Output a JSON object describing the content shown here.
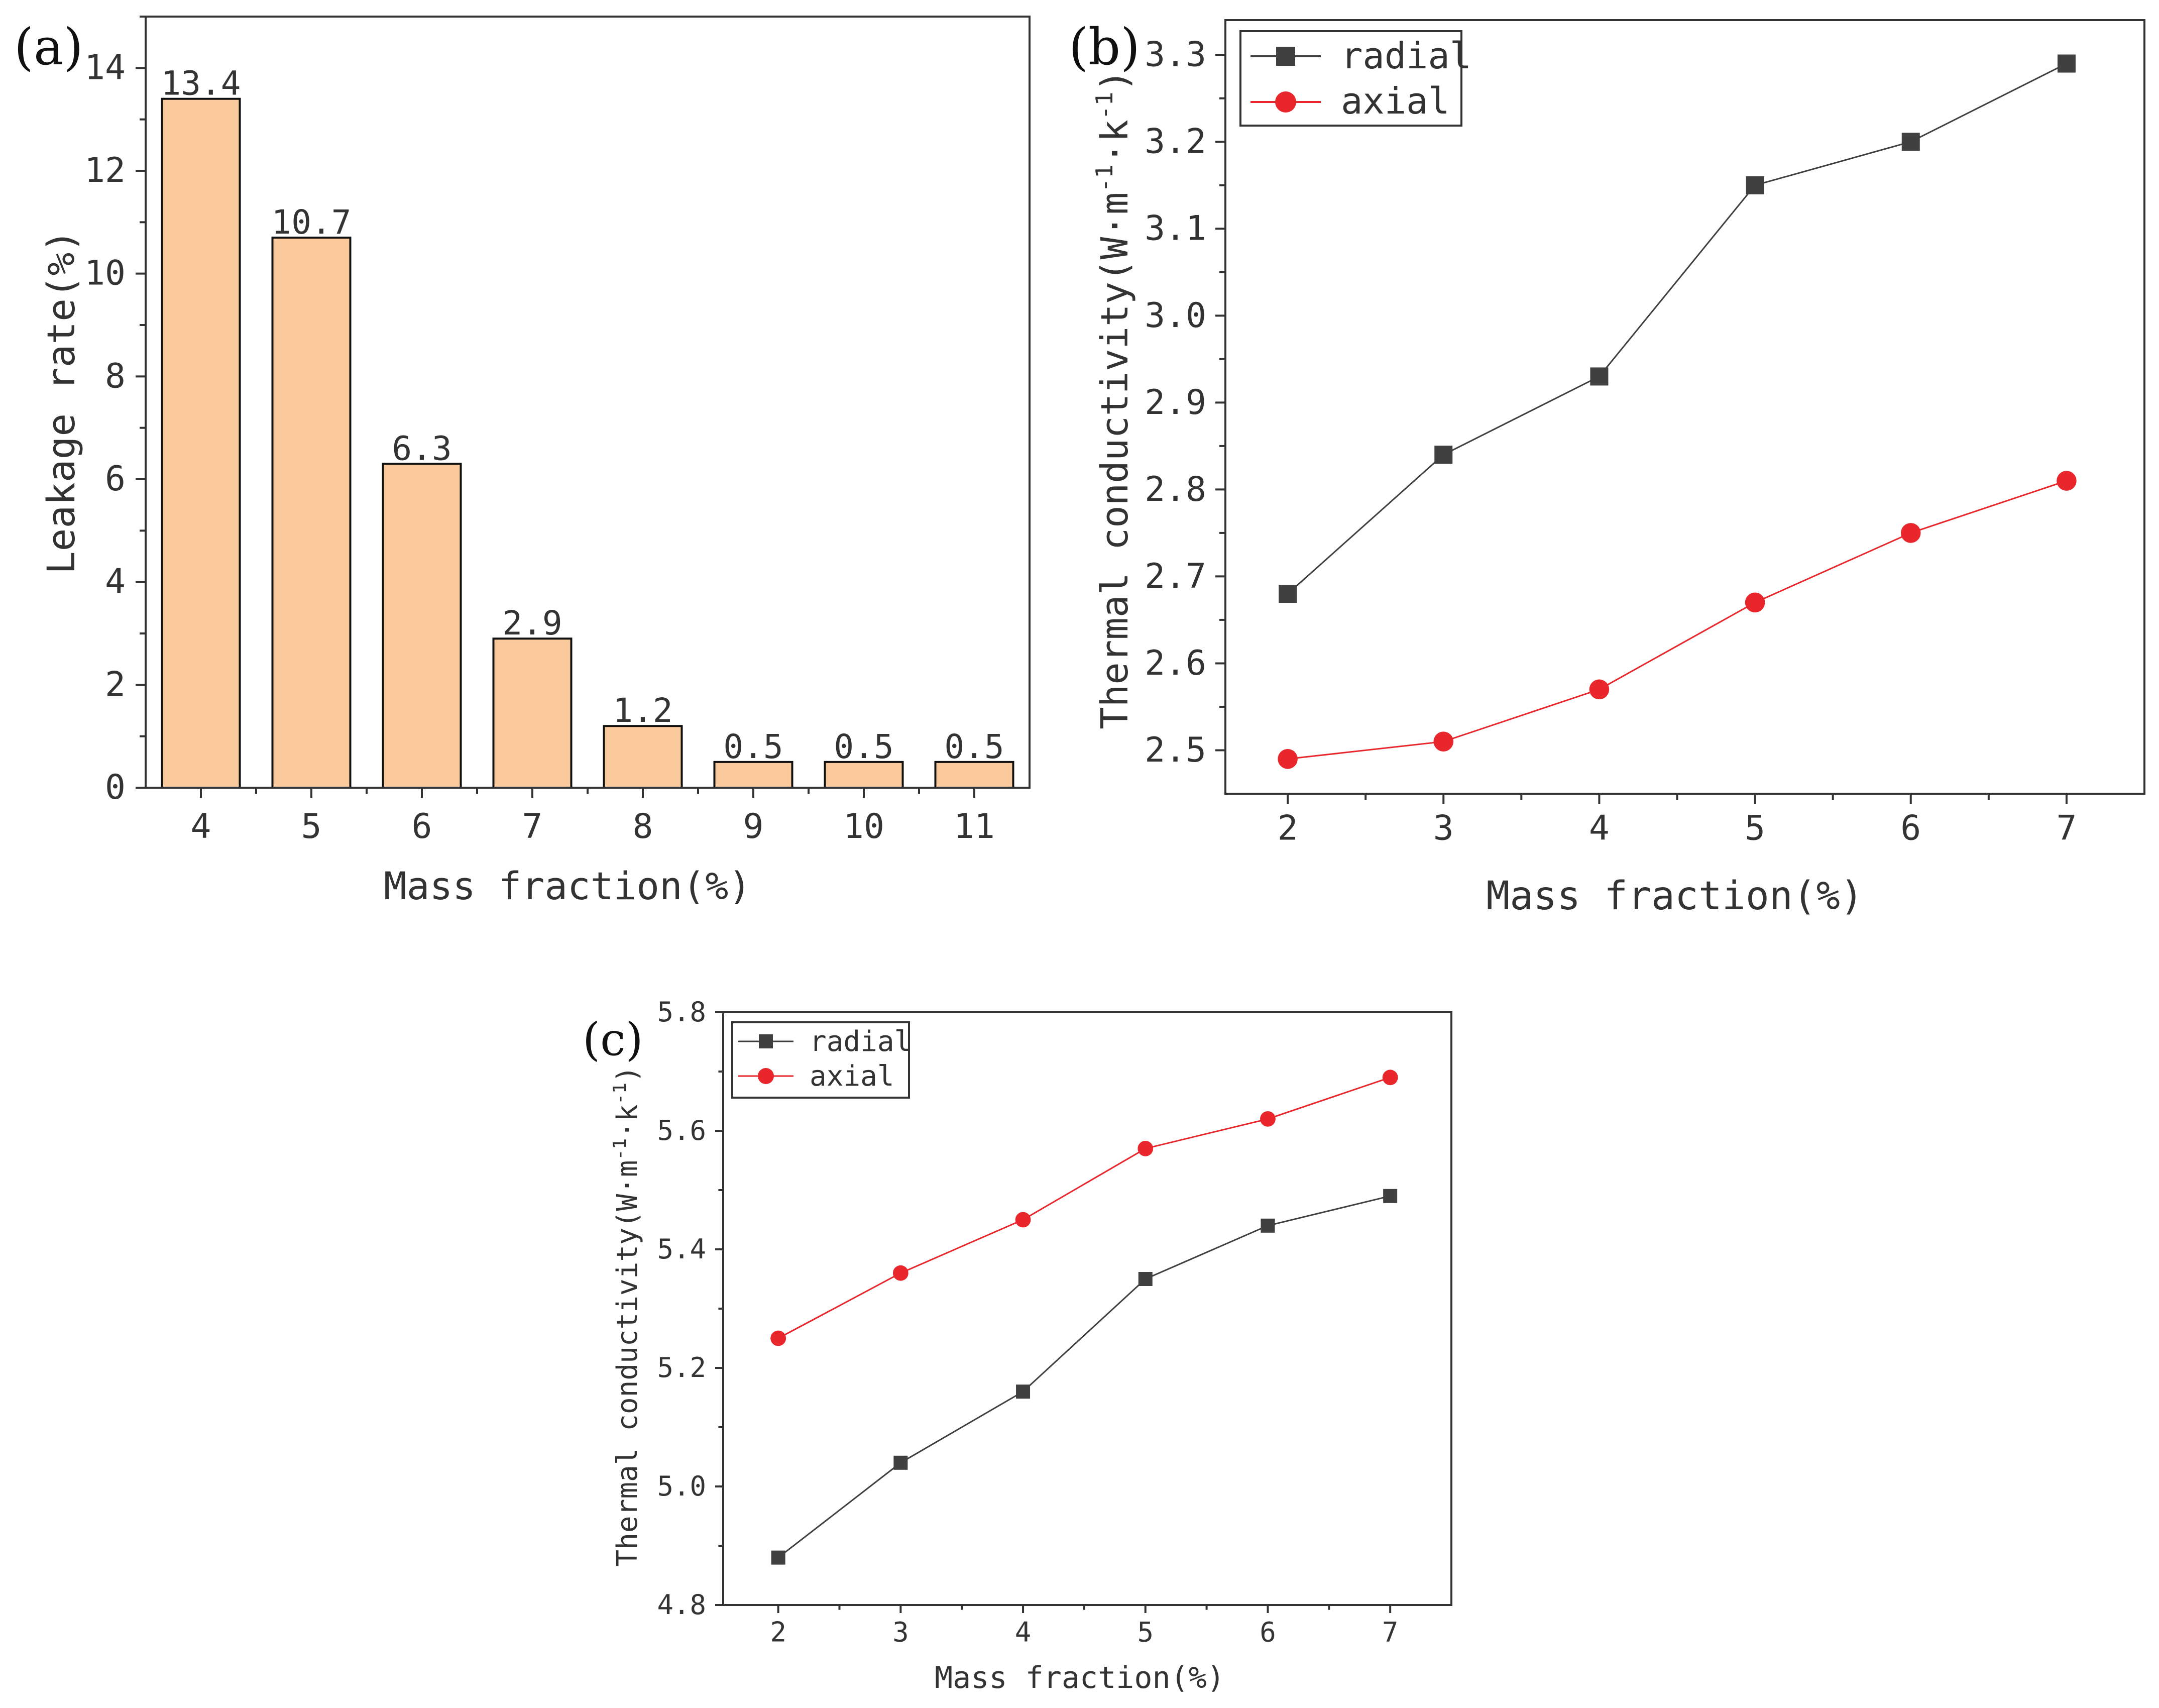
{
  "colors": {
    "bar_fill": "#f9c89b",
    "radial": "#404040",
    "axial": "#e8262b",
    "axis": "#333333"
  },
  "chart_data": [
    {
      "panel_label": "(a)",
      "type": "bar",
      "xlabel": "Mass fraction(%)",
      "ylabel": "Leakage rate(%)",
      "categories": [
        "4",
        "5",
        "6",
        "7",
        "8",
        "9",
        "10",
        "11"
      ],
      "values": [
        13.4,
        10.7,
        6.3,
        2.9,
        1.2,
        0.5,
        0.5,
        0.5
      ],
      "data_labels": [
        "13.4",
        "10.7",
        "6.3",
        "2.9",
        "1.2",
        "0.5",
        "0.5",
        "0.5"
      ],
      "ylim": [
        0,
        15
      ],
      "yticks": [
        0,
        2,
        4,
        6,
        8,
        10,
        12,
        14
      ],
      "ytick_labels": [
        "0",
        "2",
        "4",
        "6",
        "8",
        "10",
        "12",
        "14"
      ]
    },
    {
      "panel_label": "(b)",
      "type": "line",
      "xlabel": "Mass fraction(%)",
      "ylabel_main": "Thermal conductivity(W·m",
      "ylabel_parts": [
        "-1",
        "·k",
        "-1",
        ")"
      ],
      "x": [
        2,
        3,
        4,
        5,
        6,
        7
      ],
      "xlim": [
        1.6,
        7.5
      ],
      "xticks": [
        "2",
        "3",
        "4",
        "5",
        "6",
        "7"
      ],
      "ylim": [
        2.45,
        3.34
      ],
      "yticks": [
        2.5,
        2.6,
        2.7,
        2.8,
        2.9,
        3.0,
        3.1,
        3.2,
        3.3
      ],
      "ytick_labels": [
        "2.5",
        "2.6",
        "2.7",
        "2.8",
        "2.9",
        "3.0",
        "3.1",
        "3.2",
        "3.3"
      ],
      "legend_position": "top-left",
      "series": [
        {
          "name": "radial",
          "marker": "square",
          "values": [
            2.68,
            2.84,
            2.93,
            3.15,
            3.2,
            3.29
          ]
        },
        {
          "name": "axial",
          "marker": "circle",
          "values": [
            2.49,
            2.51,
            2.57,
            2.67,
            2.75,
            2.81
          ]
        }
      ]
    },
    {
      "panel_label": "(c)",
      "type": "line",
      "xlabel": "Mass fraction(%)",
      "ylabel_main": "Thermal conductivity(W·m",
      "ylabel_parts": [
        "-1",
        "·k",
        "-1",
        ")"
      ],
      "x": [
        2,
        3,
        4,
        5,
        6,
        7
      ],
      "xlim": [
        1.55,
        7.5
      ],
      "xticks": [
        "2",
        "3",
        "4",
        "5",
        "6",
        "7"
      ],
      "ylim": [
        4.8,
        5.8
      ],
      "yticks": [
        4.8,
        5.0,
        5.2,
        5.4,
        5.6,
        5.8
      ],
      "ytick_labels": [
        "4.8",
        "5.0",
        "5.2",
        "5.4",
        "5.6",
        "5.8"
      ],
      "legend_position": "top-left",
      "series": [
        {
          "name": "radial",
          "marker": "square",
          "values": [
            4.88,
            5.04,
            5.16,
            5.35,
            5.44,
            5.49
          ]
        },
        {
          "name": "axial",
          "marker": "circle",
          "values": [
            5.25,
            5.36,
            5.45,
            5.57,
            5.62,
            5.69
          ]
        }
      ]
    }
  ]
}
